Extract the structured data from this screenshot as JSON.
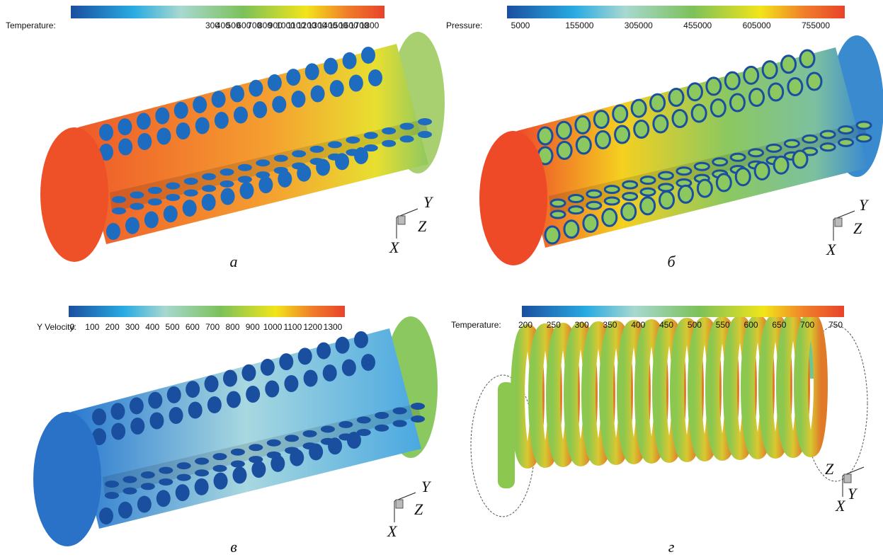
{
  "panels": [
    {
      "colorbar": {
        "label": "Temperature:",
        "ticks": [
          300,
          400,
          500,
          600,
          700,
          800,
          900,
          1000,
          1100,
          1200,
          1300,
          1400,
          1500,
          1600,
          1700,
          1800
        ]
      },
      "axes": [
        "X",
        "Y",
        "Z"
      ],
      "caption": "а"
    },
    {
      "colorbar": {
        "label": "Pressure:",
        "ticks": [
          5000,
          155000,
          305000,
          455000,
          605000,
          755000
        ]
      },
      "axes": [
        "X",
        "Y",
        "Z"
      ],
      "caption": "б"
    },
    {
      "colorbar": {
        "label": "Y Velocity:",
        "ticks": [
          0,
          100,
          200,
          300,
          400,
          500,
          600,
          700,
          800,
          900,
          1000,
          1100,
          1200,
          1300
        ]
      },
      "axes": [
        "X",
        "Y",
        "Z"
      ],
      "caption": "в"
    },
    {
      "colorbar": {
        "label": "Temperature:",
        "ticks": [
          200,
          250,
          300,
          350,
          400,
          450,
          500,
          550,
          600,
          650,
          700,
          750
        ]
      },
      "axes": [
        "X",
        "Y",
        "Z"
      ],
      "caption": "г"
    }
  ]
}
